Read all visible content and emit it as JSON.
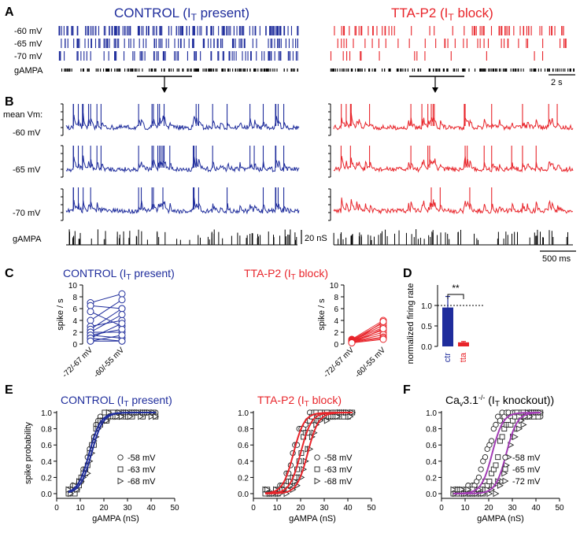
{
  "colors": {
    "control": "#1f2d9c",
    "tta": "#e8242a",
    "knockout": "#a23cb4",
    "black": "#000000",
    "grey": "#888888"
  },
  "panel_labels": {
    "A": "A",
    "B": "B",
    "C": "C",
    "D": "D",
    "E": "E",
    "F": "F"
  },
  "panel_a": {
    "control_title": "CONTROL (I",
    "control_sub": "T",
    "control_tail": " present)",
    "tta_title": "TTA-P2 (I",
    "tta_sub": "T",
    "tta_tail": " block)",
    "rows": [
      "-60 mV",
      "-65 mV",
      "-70 mV"
    ],
    "g_label": "gAMPA",
    "scale": "2 s"
  },
  "panel_b": {
    "mean_label": "mean Vm:",
    "rows": [
      "-60 mV",
      "-65 mV",
      "-70 mV"
    ],
    "g_label": "gAMPA",
    "g_scale": "20 nS",
    "t_scale": "500 ms"
  },
  "chart_data": [
    {
      "id": "C-control",
      "type": "line",
      "title": "CONTROL (IT present)",
      "title_main": "CONTROL (I",
      "title_sub": "T",
      "title_tail": " present)",
      "ylabel": "spike / s",
      "ylim": [
        0,
        10
      ],
      "yticks": [
        "0",
        "2",
        "4",
        "6",
        "8",
        "10"
      ],
      "categories": [
        "-72/-67 mV",
        "-60/-55 mV"
      ],
      "pairs": [
        [
          7,
          8.5
        ],
        [
          6.5,
          6
        ],
        [
          5.5,
          3
        ],
        [
          4,
          7.5
        ],
        [
          3,
          4
        ],
        [
          2.5,
          6
        ],
        [
          2,
          5
        ],
        [
          2,
          2
        ],
        [
          1.5,
          2.5
        ],
        [
          1.5,
          1
        ],
        [
          1,
          3.5
        ],
        [
          1,
          0.5
        ],
        [
          0.5,
          1.5
        ],
        [
          0.5,
          0.5
        ]
      ]
    },
    {
      "id": "C-tta",
      "type": "line",
      "title": "TTA-P2 (IT block)",
      "title_main": "TTA-P2 (I",
      "title_sub": "T",
      "title_tail": " block)",
      "ylabel": "spike / s",
      "ylim": [
        0,
        10
      ],
      "yticks": [
        "0",
        "2",
        "4",
        "6",
        "8",
        "10"
      ],
      "categories": [
        "-72/-67 mV",
        "-60/-55 mV"
      ],
      "pairs": [
        [
          0.8,
          4
        ],
        [
          0.7,
          3.6
        ],
        [
          0.6,
          3.2
        ],
        [
          0.6,
          2.8
        ],
        [
          0.5,
          2.4
        ],
        [
          0.5,
          2
        ],
        [
          0.4,
          1.6
        ],
        [
          0.4,
          1.2
        ],
        [
          0.3,
          1
        ],
        [
          0.3,
          3.8
        ],
        [
          0.2,
          2.6
        ],
        [
          0.2,
          0.8
        ]
      ]
    },
    {
      "id": "D",
      "type": "bar",
      "ylabel": "normalized firing rate",
      "ylim": [
        0,
        1.5
      ],
      "yticks": [
        "0.0",
        "0.5",
        "1.0"
      ],
      "categories": [
        "ctr",
        "tta"
      ],
      "values": [
        0.95,
        0.1
      ],
      "errors": [
        0.27,
        0.02
      ],
      "significance": "**",
      "reference_line": 1.0
    },
    {
      "id": "E-control",
      "type": "scatter",
      "title_main": "CONTROL (I",
      "title_sub": "T",
      "title_tail": " present)",
      "xlabel": "gAMPA (nS)",
      "ylabel": "spike probability",
      "xlim": [
        0,
        50
      ],
      "ylim": [
        0,
        1
      ],
      "xticks": [
        "0",
        "10",
        "20",
        "30",
        "40",
        "50"
      ],
      "yticks": [
        "0.0",
        "0.2",
        "0.4",
        "0.6",
        "0.8",
        "1.0"
      ],
      "series": [
        {
          "name": "-58 mV",
          "marker": "circle",
          "midpoint": 13.5,
          "slope": 2.2
        },
        {
          "name": "-63 mV",
          "marker": "square",
          "midpoint": 14.2,
          "slope": 2.2
        },
        {
          "name": "-68 mV",
          "marker": "triangle",
          "midpoint": 14.8,
          "slope": 2.2
        }
      ],
      "curves": [
        {
          "midpoint": 13.8,
          "slope": 2.4
        },
        {
          "midpoint": 14.8,
          "slope": 2.4
        }
      ]
    },
    {
      "id": "E-tta",
      "type": "scatter",
      "title_main": "TTA-P2 (I",
      "title_sub": "T",
      "title_tail": " block)",
      "xlabel": "gAMPA (nS)",
      "ylabel": "",
      "xlim": [
        0,
        50
      ],
      "ylim": [
        0,
        1
      ],
      "xticks": [
        "0",
        "10",
        "20",
        "30",
        "40",
        "50"
      ],
      "yticks": [
        "0.0",
        "0.2",
        "0.4",
        "0.6",
        "0.8",
        "1.0"
      ],
      "series": [
        {
          "name": "-58 mV",
          "marker": "circle",
          "midpoint": 17,
          "slope": 2.2
        },
        {
          "name": "-63 mV",
          "marker": "square",
          "midpoint": 20,
          "slope": 2.2
        },
        {
          "name": "-68 mV",
          "marker": "triangle",
          "midpoint": 23,
          "slope": 2.2
        }
      ],
      "curves": [
        {
          "midpoint": 17,
          "slope": 2.3
        },
        {
          "midpoint": 20,
          "slope": 2.3
        },
        {
          "midpoint": 23,
          "slope": 2.3
        }
      ]
    },
    {
      "id": "F",
      "type": "scatter",
      "title_main": "Ca",
      "title_v": "v",
      "title_mid": "3.1",
      "title_sup": "-/-",
      "title_paren": "  (I",
      "title_sub": "T",
      "title_tail": " knockout))",
      "xlabel": "gAMPA (nS)",
      "ylabel": "",
      "xlim": [
        0,
        50
      ],
      "ylim": [
        0,
        1
      ],
      "xticks": [
        "0",
        "10",
        "20",
        "30",
        "40",
        "50"
      ],
      "yticks": [
        "0.0",
        "0.2",
        "0.4",
        "0.6",
        "0.8",
        "1.0"
      ],
      "series": [
        {
          "name": "-58 mV",
          "marker": "circle",
          "midpoint": 19,
          "slope": 2.3
        },
        {
          "name": "-65 mV",
          "marker": "square",
          "midpoint": 24,
          "slope": 2.3
        },
        {
          "name": "-72 mV",
          "marker": "triangle",
          "midpoint": 29,
          "slope": 2.3
        }
      ],
      "curves": [
        {
          "midpoint": 21.5,
          "slope": 2.3
        },
        {
          "midpoint": 27.5,
          "slope": 2.3
        }
      ]
    }
  ]
}
